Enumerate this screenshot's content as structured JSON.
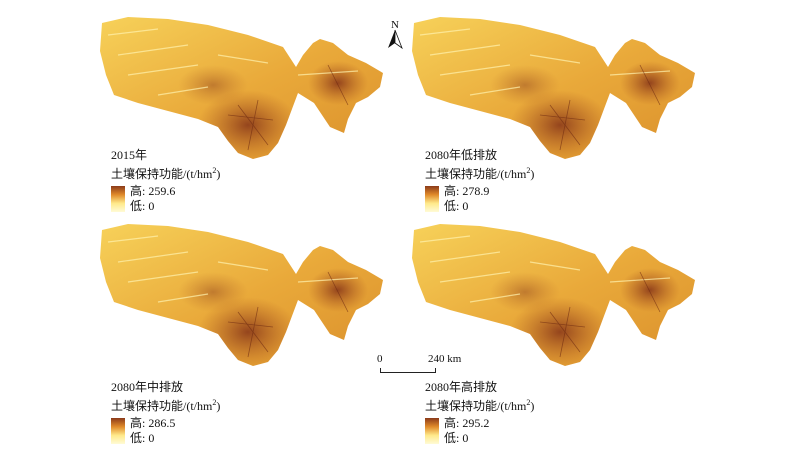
{
  "unit_text": "土壤保持功能/(t/hm",
  "unit_sup": "2",
  "unit_close": ")",
  "legend_colors": {
    "high": "#8b3a1a",
    "mid": "#e08a2a",
    "low": "#fffbd6"
  },
  "panels": [
    {
      "title": "2015年",
      "high": "高: 259.6",
      "low": "低: 0"
    },
    {
      "title": "2080年低排放",
      "high": "高: 278.9",
      "low": "低: 0"
    },
    {
      "title": "2080年中排放",
      "high": "高: 286.5",
      "low": "低: 0"
    },
    {
      "title": "2080年高排放",
      "high": "高: 295.2",
      "low": "低: 0"
    }
  ],
  "north_label": "N",
  "scale": {
    "start": "0",
    "end": "240 km"
  }
}
